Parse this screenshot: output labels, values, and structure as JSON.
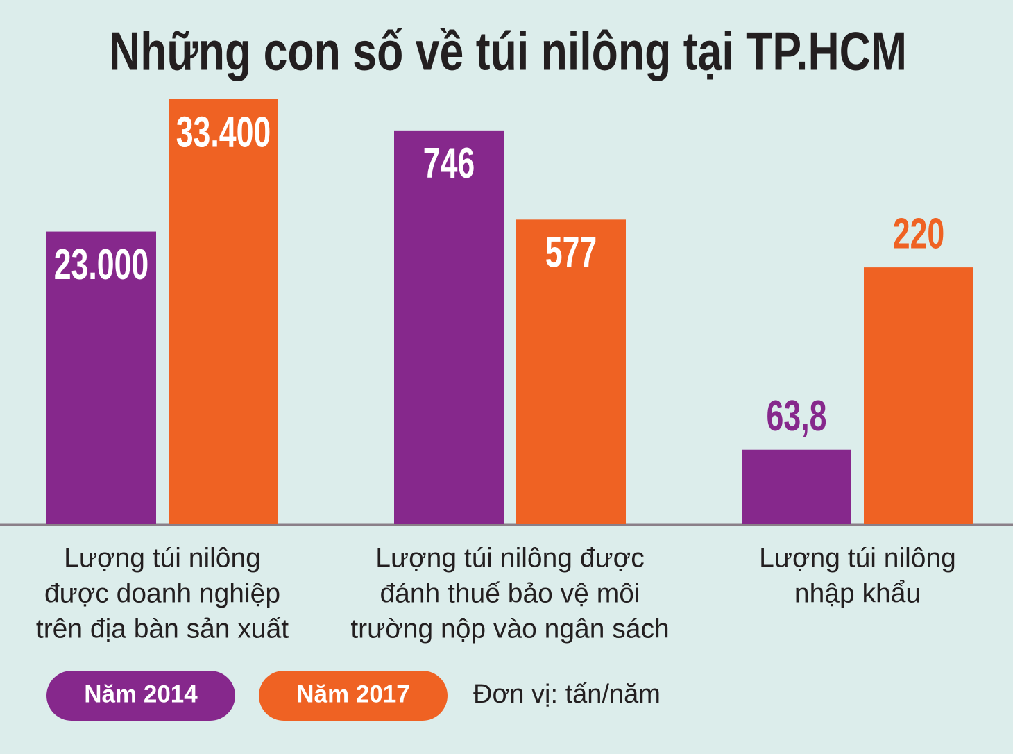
{
  "title": "Những con số về túi nilông tại TP.HCM",
  "legend": {
    "items": [
      {
        "name": "Năm 2014",
        "color": "#86288c"
      },
      {
        "name": "Năm 2017",
        "color": "#ef6223"
      }
    ]
  },
  "note": "Đơn vị: tấn/năm",
  "chart_data": [
    {
      "type": "bar",
      "label_lines": [
        "Lượng túi nilông",
        "được doanh nghiệp",
        "trên địa bàn sản xuất"
      ],
      "values": [
        23000,
        33400
      ],
      "value_labels": [
        "23.000",
        "33.400"
      ],
      "ylim": [
        0,
        33400
      ],
      "label_position": "inside"
    },
    {
      "type": "bar",
      "label_lines": [
        "Lượng túi nilông được",
        "đánh thuế bảo vệ môi",
        "trường nộp vào ngân sách"
      ],
      "values": [
        746,
        577
      ],
      "ylim": [
        0,
        805
      ],
      "label_position": "inside"
    },
    {
      "type": "bar",
      "label_lines": [
        "Lượng túi nilông",
        "nhập khẩu"
      ],
      "values": [
        63.8,
        220
      ],
      "value_labels": [
        "63,8",
        "220"
      ],
      "ylim": [
        0,
        364
      ],
      "label_position": "outside"
    }
  ]
}
